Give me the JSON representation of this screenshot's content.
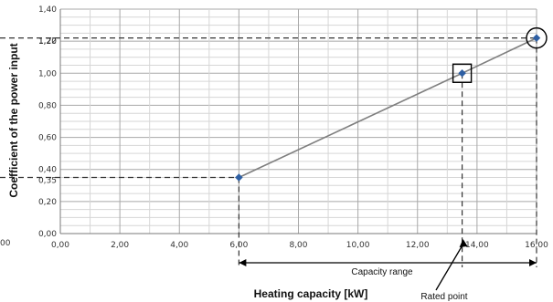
{
  "chart_data": {
    "type": "line",
    "xlabel": "Heating capacity [kW]",
    "ylabel": "Coefficient of the power input",
    "xlim": [
      0,
      16
    ],
    "ylim": [
      0,
      1.4
    ],
    "grid": "on",
    "x_ticks": [
      "0,00",
      "2,00",
      "4,00",
      "6,00",
      "8,00",
      "10,00",
      "12,00",
      "14,00",
      "16,00"
    ],
    "y_ticks": [
      "0,00",
      "0,20",
      "0,40",
      "0,60",
      "0,80",
      "1,00",
      "1,20",
      "1,40"
    ],
    "extra_y_labels": [
      "0,35",
      "1,22"
    ],
    "stray_label": "00",
    "series": [
      {
        "x": [
          6.0,
          13.5,
          16.0
        ],
        "y": [
          0.35,
          1.0,
          1.22
        ],
        "color": "#7f7f7f",
        "marker_color": "#2e5fa3"
      }
    ],
    "annotations": {
      "capacity_range": "Capacity range",
      "rated_point": "Rated point"
    }
  }
}
